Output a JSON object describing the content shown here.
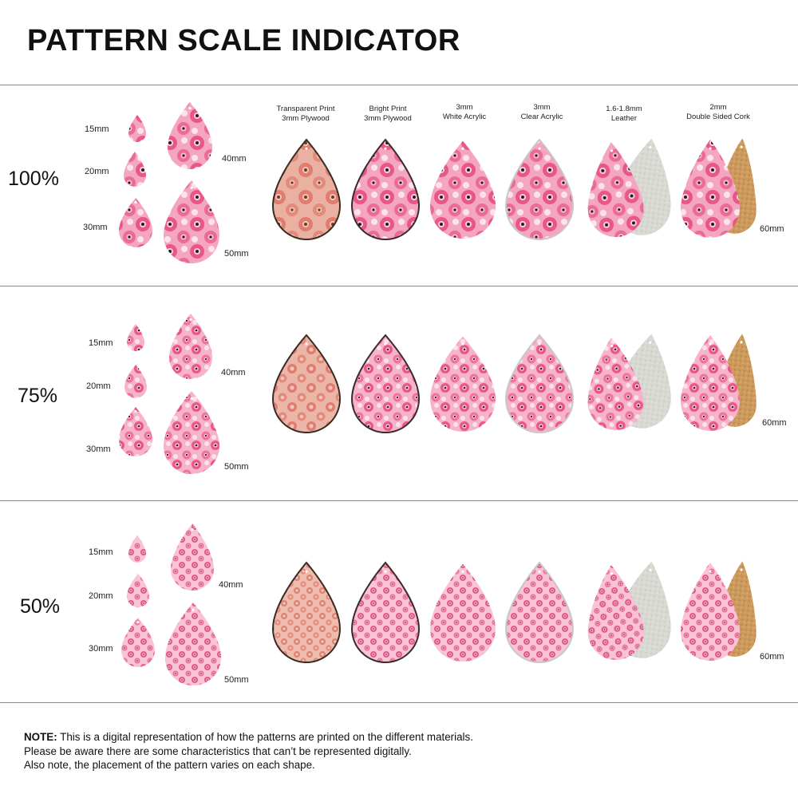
{
  "title": "PATTERN SCALE INDICATOR",
  "materials": [
    {
      "line1": "Transparent Print",
      "line2": "3mm Plywood"
    },
    {
      "line1": "Bright Print",
      "line2": "3mm Plywood"
    },
    {
      "line1": "3mm",
      "line2": "White Acrylic"
    },
    {
      "line1": "3mm",
      "line2": "Clear Acrylic"
    },
    {
      "line1": "1.6-1.8mm",
      "line2": "Leather"
    },
    {
      "line1": "2mm",
      "line2": "Double Sided Cork"
    }
  ],
  "sizes": {
    "s15": "15mm",
    "s20": "20mm",
    "s30": "30mm",
    "s40": "40mm",
    "s50": "50mm",
    "s60": "60mm"
  },
  "sections": [
    {
      "scale": "100%"
    },
    {
      "scale": "75%"
    },
    {
      "scale": "50%"
    }
  ],
  "note": {
    "label": "NOTE:",
    "line1": " This is a digital representation of how the patterns are printed on the different materials.",
    "line2": "Please be aware there are some characteristics that can’t be represented digitally.",
    "line3": "Also note, the placement of the pattern varies on each shape."
  },
  "colors": {
    "pink": "#e9578a",
    "light_pink": "#f6b3c9",
    "plywood": "#e49a8c",
    "leather": "#d8d8d2",
    "cork": "#c99657",
    "flower_center": "#2a1a22"
  }
}
